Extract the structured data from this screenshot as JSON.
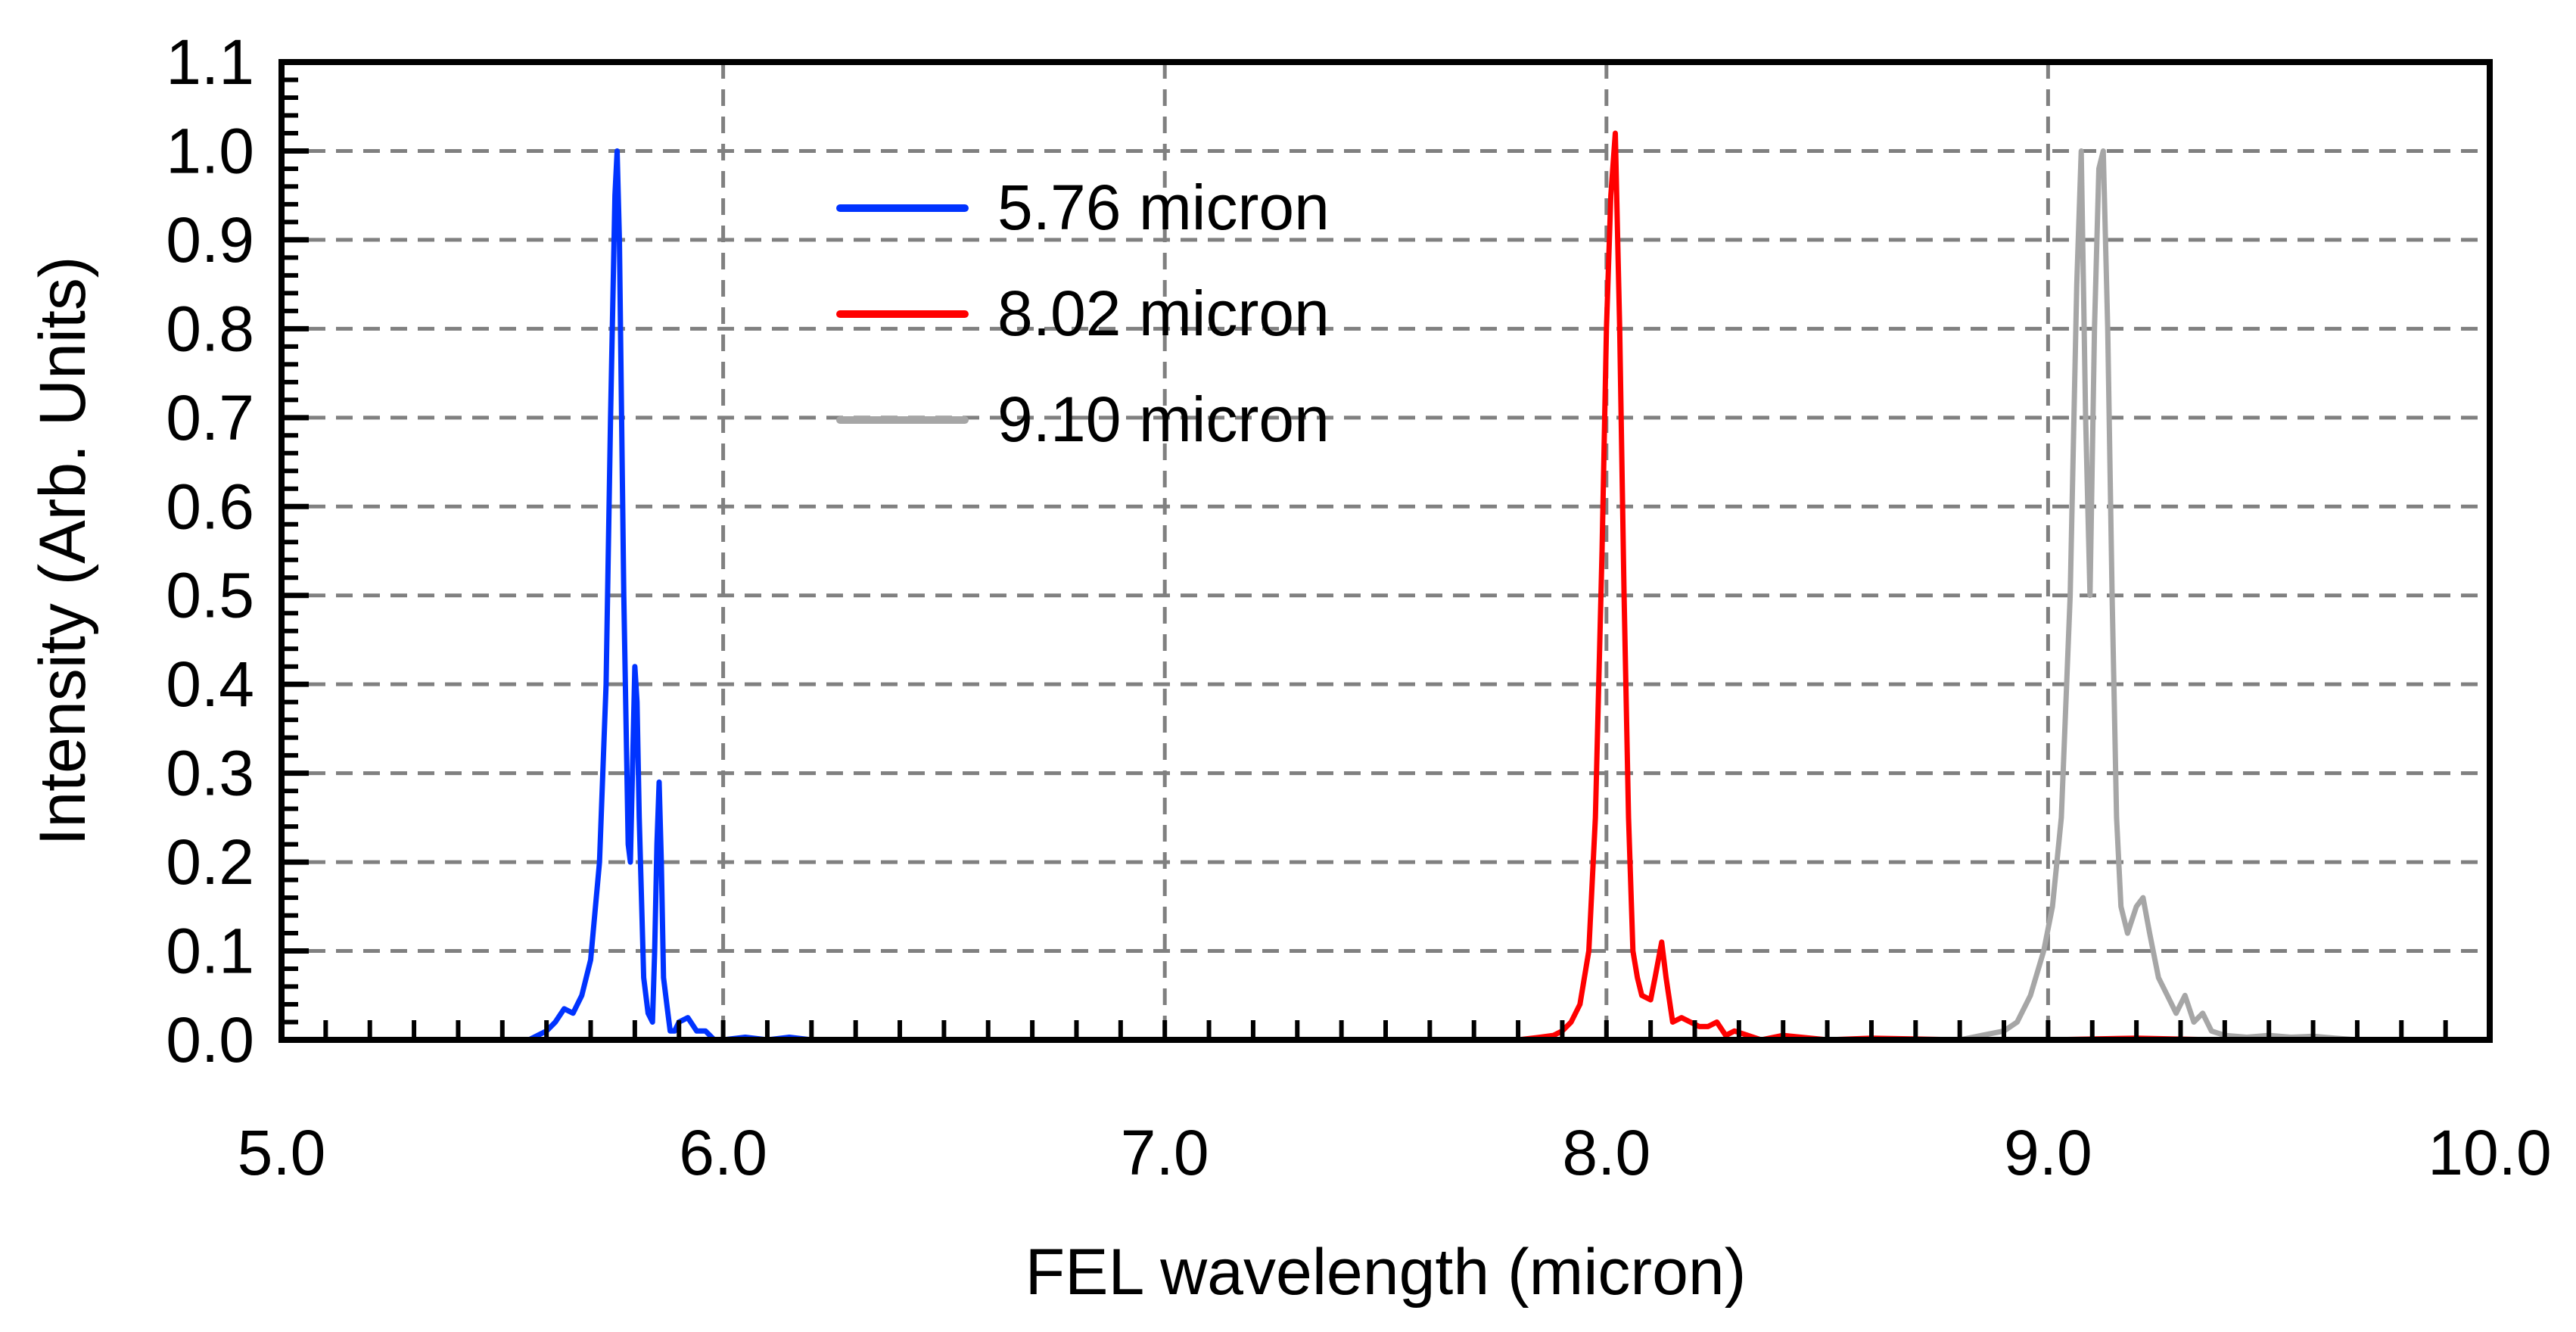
{
  "chart_data": {
    "type": "line",
    "title": "",
    "xlabel": "FEL wavelength (micron)",
    "ylabel": "Intensity (Arb. Units)",
    "xlim": [
      5.0,
      10.0
    ],
    "ylim": [
      0.0,
      1.1
    ],
    "x_ticks": [
      5.0,
      6.0,
      7.0,
      8.0,
      9.0,
      10.0
    ],
    "x_tick_labels": [
      "5.0",
      "6.0",
      "7.0",
      "8.0",
      "9.0",
      "10.0"
    ],
    "y_ticks": [
      0.0,
      0.1,
      0.2,
      0.3,
      0.4,
      0.5,
      0.6,
      0.7,
      0.8,
      0.9,
      1.0,
      1.1
    ],
    "y_tick_labels": [
      "0.0",
      "0.1",
      "0.2",
      "0.3",
      "0.4",
      "0.5",
      "0.6",
      "0.7",
      "0.8",
      "0.9",
      "1.0",
      "1.1"
    ],
    "x_minor_step": 0.1,
    "y_minor_step": 0.02,
    "grid": {
      "x": true,
      "y": true,
      "style": "dashed",
      "color": "#808080"
    },
    "legend_position": "top-center",
    "series": [
      {
        "name": "5.76 micron",
        "color": "#0033ff",
        "x": [
          5.56,
          5.58,
          5.6,
          5.62,
          5.64,
          5.66,
          5.68,
          5.7,
          5.72,
          5.735,
          5.745,
          5.755,
          5.76,
          5.765,
          5.775,
          5.785,
          5.79,
          5.8,
          5.805,
          5.81,
          5.82,
          5.83,
          5.84,
          5.845,
          5.85,
          5.855,
          5.86,
          5.865,
          5.875,
          5.88,
          5.89,
          5.9,
          5.92,
          5.94,
          5.96,
          5.98,
          6.0,
          6.05,
          6.1,
          6.15,
          6.2,
          6.26
        ],
        "y": [
          0.0,
          0.005,
          0.01,
          0.02,
          0.035,
          0.03,
          0.05,
          0.09,
          0.2,
          0.4,
          0.7,
          0.95,
          1.0,
          0.9,
          0.5,
          0.22,
          0.2,
          0.42,
          0.38,
          0.25,
          0.07,
          0.03,
          0.02,
          0.1,
          0.22,
          0.29,
          0.2,
          0.07,
          0.03,
          0.01,
          0.01,
          0.02,
          0.025,
          0.01,
          0.01,
          0.0,
          0.0,
          0.003,
          0.0,
          0.003,
          0.0,
          0.0
        ]
      },
      {
        "name": "8.02 micron",
        "color": "#ff0000",
        "x": [
          7.7,
          7.8,
          7.85,
          7.88,
          7.9,
          7.92,
          7.94,
          7.96,
          7.975,
          7.99,
          8.0,
          8.01,
          8.02,
          8.03,
          8.04,
          8.05,
          8.06,
          8.07,
          8.08,
          8.1,
          8.11,
          8.125,
          8.135,
          8.15,
          8.17,
          8.19,
          8.21,
          8.23,
          8.25,
          8.27,
          8.29,
          8.32,
          8.35,
          8.4,
          8.5,
          8.6,
          8.8,
          9.0,
          9.2,
          9.38
        ],
        "y": [
          0.0,
          0.0,
          0.003,
          0.005,
          0.01,
          0.02,
          0.04,
          0.1,
          0.25,
          0.55,
          0.8,
          0.95,
          1.02,
          0.8,
          0.5,
          0.25,
          0.1,
          0.07,
          0.05,
          0.045,
          0.07,
          0.11,
          0.07,
          0.02,
          0.025,
          0.02,
          0.015,
          0.015,
          0.02,
          0.005,
          0.01,
          0.005,
          0.0,
          0.005,
          0.0,
          0.002,
          0.0,
          0.0,
          0.002,
          0.0
        ]
      },
      {
        "name": "9.10 micron",
        "color": "#a6a6a6",
        "x": [
          8.8,
          8.85,
          8.9,
          8.93,
          8.96,
          8.99,
          9.01,
          9.03,
          9.05,
          9.065,
          9.075,
          9.085,
          9.095,
          9.105,
          9.115,
          9.125,
          9.135,
          9.145,
          9.155,
          9.165,
          9.18,
          9.2,
          9.215,
          9.23,
          9.25,
          9.27,
          9.29,
          9.31,
          9.33,
          9.35,
          9.37,
          9.4,
          9.45,
          9.5,
          9.55,
          9.6,
          9.65,
          9.7
        ],
        "y": [
          0.0,
          0.005,
          0.01,
          0.02,
          0.05,
          0.1,
          0.15,
          0.25,
          0.5,
          0.85,
          1.0,
          0.7,
          0.5,
          0.8,
          0.98,
          1.0,
          0.8,
          0.5,
          0.25,
          0.15,
          0.12,
          0.15,
          0.16,
          0.12,
          0.07,
          0.05,
          0.03,
          0.05,
          0.02,
          0.03,
          0.01,
          0.005,
          0.003,
          0.005,
          0.003,
          0.004,
          0.002,
          0.0
        ]
      }
    ]
  }
}
